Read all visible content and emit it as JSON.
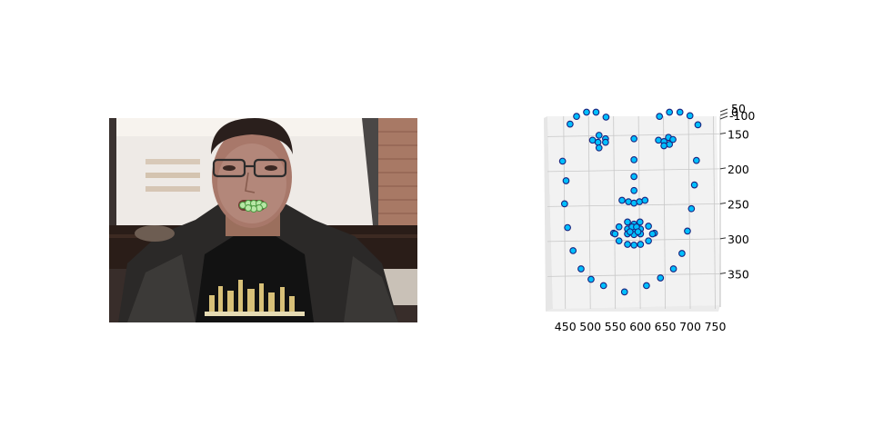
{
  "photo": {
    "description_icon": "webcam-face-photo"
  },
  "chart_data": {
    "type": "scatter",
    "title": "",
    "xlabel": "",
    "ylabel": "",
    "zlabel": "",
    "xlim": [
      425,
      760
    ],
    "ylim": [
      395,
      130
    ],
    "x_ticks": [
      "450",
      "500",
      "550",
      "600",
      "650",
      "700",
      "750"
    ],
    "y_ticks": [
      "150",
      "200",
      "250",
      "300",
      "350"
    ],
    "z_ticks": [
      "50",
      "0",
      "-100"
    ],
    "marker_face": "#00bfff",
    "marker_edge": "#1a237e",
    "points": [
      [
        448,
        189
      ],
      [
        455,
        217
      ],
      [
        452,
        250
      ],
      [
        458,
        284
      ],
      [
        469,
        317
      ],
      [
        485,
        343
      ],
      [
        505,
        358
      ],
      [
        530,
        367
      ],
      [
        572,
        376
      ],
      [
        616,
        367
      ],
      [
        644,
        356
      ],
      [
        670,
        343
      ],
      [
        687,
        321
      ],
      [
        698,
        289
      ],
      [
        706,
        257
      ],
      [
        712,
        223
      ],
      [
        716,
        188
      ],
      [
        463,
        136
      ],
      [
        476,
        125
      ],
      [
        496,
        119
      ],
      [
        515,
        119
      ],
      [
        535,
        126
      ],
      [
        642,
        125
      ],
      [
        662,
        119
      ],
      [
        683,
        119
      ],
      [
        703,
        124
      ],
      [
        719,
        137
      ],
      [
        591,
        157
      ],
      [
        591,
        187
      ],
      [
        591,
        211
      ],
      [
        591,
        231
      ],
      [
        567,
        245
      ],
      [
        580,
        247
      ],
      [
        591,
        249
      ],
      [
        602,
        247
      ],
      [
        613,
        245
      ],
      [
        508,
        159
      ],
      [
        519,
        162
      ],
      [
        521,
        152
      ],
      [
        534,
        157
      ],
      [
        534,
        162
      ],
      [
        521,
        170
      ],
      [
        640,
        159
      ],
      [
        651,
        161
      ],
      [
        660,
        155
      ],
      [
        669,
        158
      ],
      [
        662,
        165
      ],
      [
        651,
        167
      ],
      [
        550,
        292
      ],
      [
        561,
        283
      ],
      [
        578,
        276
      ],
      [
        591,
        279
      ],
      [
        603,
        276
      ],
      [
        620,
        282
      ],
      [
        632,
        292
      ],
      [
        620,
        303
      ],
      [
        604,
        308
      ],
      [
        591,
        309
      ],
      [
        578,
        308
      ],
      [
        561,
        303
      ],
      [
        553,
        293
      ],
      [
        578,
        286
      ],
      [
        591,
        287
      ],
      [
        604,
        286
      ],
      [
        628,
        293
      ],
      [
        604,
        293
      ],
      [
        591,
        294
      ],
      [
        578,
        293
      ],
      [
        587,
        283
      ],
      [
        596,
        283
      ],
      [
        583,
        290
      ],
      [
        599,
        290
      ]
    ]
  }
}
